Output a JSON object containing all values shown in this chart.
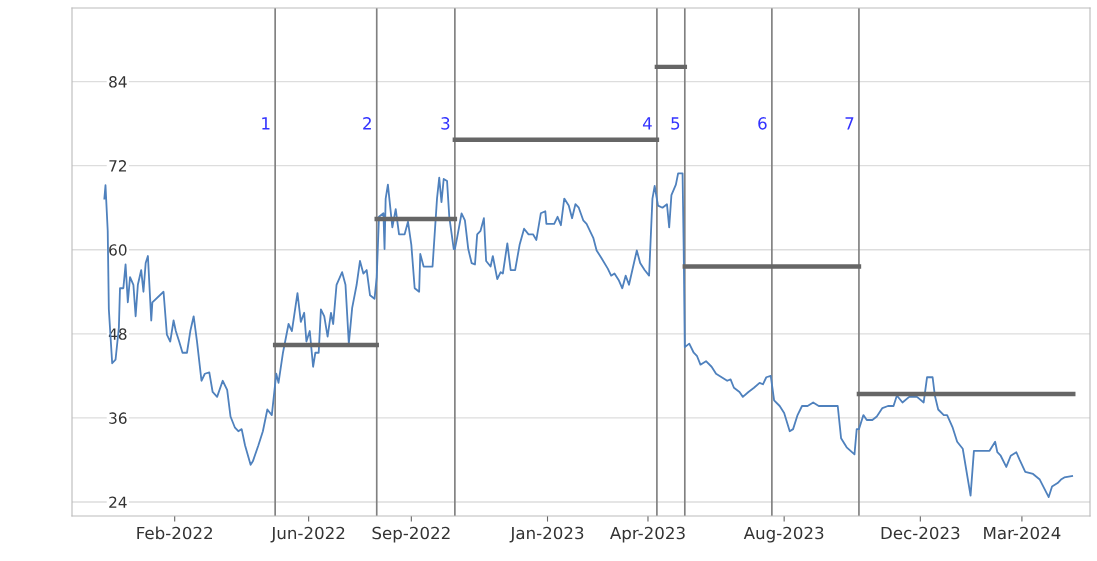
{
  "chart_data": {
    "type": "line",
    "xlim": [
      "2021-11-01",
      "2024-05-01"
    ],
    "ylim": [
      22,
      94.5
    ],
    "xticks": [
      {
        "value": "2022-02-01",
        "label": "Feb-2022"
      },
      {
        "value": "2022-06-01",
        "label": "Jun-2022"
      },
      {
        "value": "2022-09-01",
        "label": "Sep-2022"
      },
      {
        "value": "2023-01-01",
        "label": "Jan-2023"
      },
      {
        "value": "2023-04-01",
        "label": "Apr-2023"
      },
      {
        "value": "2023-08-01",
        "label": "Aug-2023"
      },
      {
        "value": "2023-12-01",
        "label": "Dec-2023"
      },
      {
        "value": "2024-03-01",
        "label": "Mar-2024"
      }
    ],
    "yticks": [
      24,
      36,
      48,
      60,
      72,
      84
    ],
    "grid": "y",
    "legend": false,
    "marker": "none",
    "line_style": "solid",
    "series": [
      {
        "color": "#4f81bd",
        "x": [
          "2021-11-30",
          "2021-12-01",
          "2021-12-03",
          "2021-12-04",
          "2021-12-07",
          "2021-12-10",
          "2021-12-13",
          "2021-12-14",
          "2021-12-17",
          "2021-12-19",
          "2021-12-21",
          "2021-12-23",
          "2021-12-26",
          "2021-12-28",
          "2021-12-30",
          "2022-01-02",
          "2022-01-04",
          "2022-01-06",
          "2022-01-08",
          "2022-01-11",
          "2022-01-12",
          "2022-01-22",
          "2022-01-25",
          "2022-01-28",
          "2022-01-31",
          "2022-02-02",
          "2022-02-05",
          "2022-02-08",
          "2022-02-12",
          "2022-02-15",
          "2022-02-18",
          "2022-02-21",
          "2022-02-25",
          "2022-02-28",
          "2022-03-04",
          "2022-03-07",
          "2022-03-11",
          "2022-03-16",
          "2022-03-20",
          "2022-03-23",
          "2022-03-27",
          "2022-03-30",
          "2022-04-02",
          "2022-04-05",
          "2022-04-10",
          "2022-04-12",
          "2022-04-17",
          "2022-04-21",
          "2022-04-25",
          "2022-04-29",
          "2022-05-03",
          "2022-05-05",
          "2022-05-09",
          "2022-05-14",
          "2022-05-17",
          "2022-05-22",
          "2022-05-25",
          "2022-05-28",
          "2022-05-30",
          "2022-06-02",
          "2022-06-05",
          "2022-06-07",
          "2022-06-10",
          "2022-06-12",
          "2022-06-15",
          "2022-06-18",
          "2022-06-21",
          "2022-06-23",
          "2022-06-26",
          "2022-07-01",
          "2022-07-04",
          "2022-07-07",
          "2022-07-10",
          "2022-07-14",
          "2022-07-17",
          "2022-07-20",
          "2022-07-23",
          "2022-07-26",
          "2022-07-30",
          "2022-08-01",
          "2022-08-03",
          "2022-08-07",
          "2022-08-08",
          "2022-08-09",
          "2022-08-11",
          "2022-08-15",
          "2022-08-18",
          "2022-08-21",
          "2022-08-26",
          "2022-08-29",
          "2022-09-01",
          "2022-09-04",
          "2022-09-08",
          "2022-09-09",
          "2022-09-12",
          "2022-09-20",
          "2022-09-24",
          "2022-09-26",
          "2022-09-28",
          "2022-09-30",
          "2022-10-03",
          "2022-10-05",
          "2022-10-09",
          "2022-10-10",
          "2022-10-12",
          "2022-10-16",
          "2022-10-19",
          "2022-10-22",
          "2022-10-25",
          "2022-10-28",
          "2022-10-30",
          "2022-11-02",
          "2022-11-05",
          "2022-11-07",
          "2022-11-11",
          "2022-11-13",
          "2022-11-17",
          "2022-11-20",
          "2022-11-22",
          "2022-11-26",
          "2022-11-29",
          "2022-12-03",
          "2022-12-07",
          "2022-12-11",
          "2022-12-15",
          "2022-12-19",
          "2022-12-22",
          "2022-12-26",
          "2022-12-30",
          "2022-12-31",
          "2023-01-07",
          "2023-01-10",
          "2023-01-13",
          "2023-01-16",
          "2023-01-20",
          "2023-01-23",
          "2023-01-26",
          "2023-01-29",
          "2023-02-02",
          "2023-02-05",
          "2023-02-11",
          "2023-02-14",
          "2023-02-18",
          "2023-02-24",
          "2023-02-27",
          "2023-03-02",
          "2023-03-06",
          "2023-03-09",
          "2023-03-12",
          "2023-03-15",
          "2023-03-18",
          "2023-03-22",
          "2023-03-25",
          "2023-03-29",
          "2023-04-02",
          "2023-04-05",
          "2023-04-07",
          "2023-04-10",
          "2023-04-14",
          "2023-04-18",
          "2023-04-20",
          "2023-04-22",
          "2023-04-26",
          "2023-04-28",
          "2023-05-02",
          "2023-05-03",
          "2023-05-04",
          "2023-05-08",
          "2023-05-12",
          "2023-05-15",
          "2023-05-18",
          "2023-05-23",
          "2023-05-28",
          "2023-06-01",
          "2023-06-06",
          "2023-06-11",
          "2023-06-14",
          "2023-06-17",
          "2023-06-22",
          "2023-06-25",
          "2023-06-30",
          "2023-07-05",
          "2023-07-10",
          "2023-07-13",
          "2023-07-16",
          "2023-07-20",
          "2023-07-23",
          "2023-07-28",
          "2023-08-01",
          "2023-08-06",
          "2023-08-09",
          "2023-08-13",
          "2023-08-17",
          "2023-08-22",
          "2023-08-27",
          "2023-09-01",
          "2023-09-07",
          "2023-09-14",
          "2023-09-18",
          "2023-09-21",
          "2023-09-26",
          "2023-10-03",
          "2023-10-05",
          "2023-10-07",
          "2023-10-11",
          "2023-10-14",
          "2023-10-19",
          "2023-10-23",
          "2023-10-28",
          "2023-11-02",
          "2023-11-07",
          "2023-11-10",
          "2023-11-15",
          "2023-11-21",
          "2023-11-28",
          "2023-12-04",
          "2023-12-07",
          "2023-12-12",
          "2023-12-14",
          "2023-12-17",
          "2023-12-22",
          "2023-12-25",
          "2023-12-30",
          "2024-01-03",
          "2024-01-08",
          "2024-01-15",
          "2024-01-18",
          "2024-01-23",
          "2024-02-01",
          "2024-02-06",
          "2024-02-08",
          "2024-02-11",
          "2024-02-16",
          "2024-02-20",
          "2024-02-25",
          "2024-02-28",
          "2024-03-04",
          "2024-03-11",
          "2024-03-17",
          "2024-03-25",
          "2024-03-28",
          "2024-04-02",
          "2024-04-05",
          "2024-04-08",
          "2024-04-15"
        ],
        "values": [
          67.3,
          69.2,
          62.7,
          51.5,
          43.8,
          44.3,
          48.9,
          54.5,
          54.5,
          57.9,
          52.5,
          56.1,
          55.0,
          50.5,
          55.0,
          57.1,
          54.0,
          58.1,
          59.1,
          49.9,
          52.5,
          54.0,
          47.9,
          46.9,
          49.9,
          48.4,
          46.9,
          45.3,
          45.3,
          48.4,
          50.5,
          46.9,
          41.3,
          42.3,
          42.5,
          39.7,
          39.0,
          41.3,
          40.0,
          36.2,
          34.6,
          34.1,
          34.4,
          32.1,
          29.3,
          29.8,
          32.1,
          34.1,
          37.2,
          36.4,
          42.3,
          41.0,
          45.3,
          49.4,
          48.4,
          53.8,
          49.7,
          51.0,
          46.9,
          48.4,
          43.3,
          45.3,
          45.3,
          51.5,
          50.5,
          47.6,
          51.0,
          49.4,
          55.0,
          56.8,
          55.0,
          46.6,
          51.7,
          55.0,
          58.4,
          56.6,
          57.1,
          53.5,
          53.0,
          56.1,
          64.7,
          65.2,
          60.1,
          67.3,
          69.3,
          63.2,
          65.8,
          62.2,
          62.2,
          64.0,
          60.7,
          54.5,
          54.0,
          59.4,
          57.6,
          57.6,
          67.3,
          70.3,
          66.8,
          70.1,
          69.8,
          64.7,
          60.1,
          60.1,
          61.7,
          65.2,
          64.2,
          60.1,
          58.1,
          57.9,
          62.2,
          62.7,
          64.5,
          58.4,
          57.6,
          59.1,
          55.8,
          56.8,
          56.6,
          60.9,
          57.1,
          57.1,
          60.7,
          63.0,
          62.2,
          62.2,
          61.4,
          65.2,
          65.5,
          63.7,
          63.7,
          64.7,
          63.5,
          67.3,
          66.3,
          64.5,
          66.5,
          66.0,
          64.2,
          63.7,
          61.7,
          59.9,
          58.9,
          57.3,
          56.3,
          56.6,
          55.6,
          54.5,
          56.3,
          55.0,
          57.1,
          59.9,
          58.1,
          57.1,
          56.3,
          67.3,
          69.1,
          66.3,
          66.0,
          66.5,
          63.2,
          67.8,
          69.3,
          70.9,
          70.9,
          60.1,
          46.1,
          46.6,
          45.3,
          44.8,
          43.6,
          44.1,
          43.3,
          42.3,
          41.8,
          41.3,
          41.5,
          40.3,
          39.7,
          39.0,
          39.7,
          40.3,
          41.0,
          40.8,
          41.8,
          42.0,
          38.5,
          37.7,
          36.7,
          34.1,
          34.4,
          36.4,
          37.7,
          37.7,
          38.2,
          37.7,
          37.7,
          37.7,
          37.7,
          33.1,
          31.8,
          30.8,
          34.4,
          34.4,
          36.4,
          35.7,
          35.7,
          36.2,
          37.4,
          37.7,
          37.7,
          39.2,
          38.2,
          39.0,
          39.0,
          38.2,
          41.8,
          41.8,
          39.2,
          37.2,
          36.4,
          36.4,
          34.6,
          32.6,
          31.6,
          24.9,
          31.3,
          31.3,
          31.3,
          32.6,
          31.1,
          30.6,
          29.0,
          30.6,
          31.1,
          30.0,
          28.3,
          28.0,
          27.2,
          24.7,
          26.2,
          26.7,
          27.2,
          27.5,
          27.7
        ]
      },
      {
        "color": "#666666",
        "x": [
          "2022-05-02",
          "2022-08-01"
        ],
        "values": [
          46.4,
          46.4
        ]
      },
      {
        "color": "#666666",
        "x": [
          "2022-08-01",
          "2022-10-10"
        ],
        "values": [
          64.4,
          64.4
        ]
      },
      {
        "color": "#666666",
        "x": [
          "2022-10-10",
          "2023-04-09"
        ],
        "values": [
          75.7,
          75.7
        ]
      },
      {
        "color": "#666666",
        "x": [
          "2023-04-09",
          "2023-05-04"
        ],
        "values": [
          86.1,
          86.1
        ]
      },
      {
        "color": "#666666",
        "x": [
          "2023-05-04",
          "2023-10-07"
        ],
        "values": [
          57.6,
          57.6
        ]
      },
      {
        "color": "#666666",
        "x": [
          "2023-10-07",
          "2024-04-16"
        ],
        "values": [
          39.4,
          39.4
        ]
      }
    ],
    "ref_lines": [
      {
        "axis": "x",
        "value": "2022-05-02",
        "label": "1",
        "color": "#808080"
      },
      {
        "axis": "x",
        "value": "2022-08-01",
        "label": "2",
        "color": "#808080"
      },
      {
        "axis": "x",
        "value": "2022-10-10",
        "label": "3",
        "color": "#808080"
      },
      {
        "axis": "x",
        "value": "2023-04-09",
        "label": "4",
        "color": "#808080"
      },
      {
        "axis": "x",
        "value": "2023-05-04",
        "label": "5",
        "color": "#808080"
      },
      {
        "axis": "x",
        "value": "2023-07-21",
        "label": "6",
        "color": "#808080"
      },
      {
        "axis": "x",
        "value": "2023-10-07",
        "label": "7",
        "color": "#808080"
      }
    ]
  }
}
